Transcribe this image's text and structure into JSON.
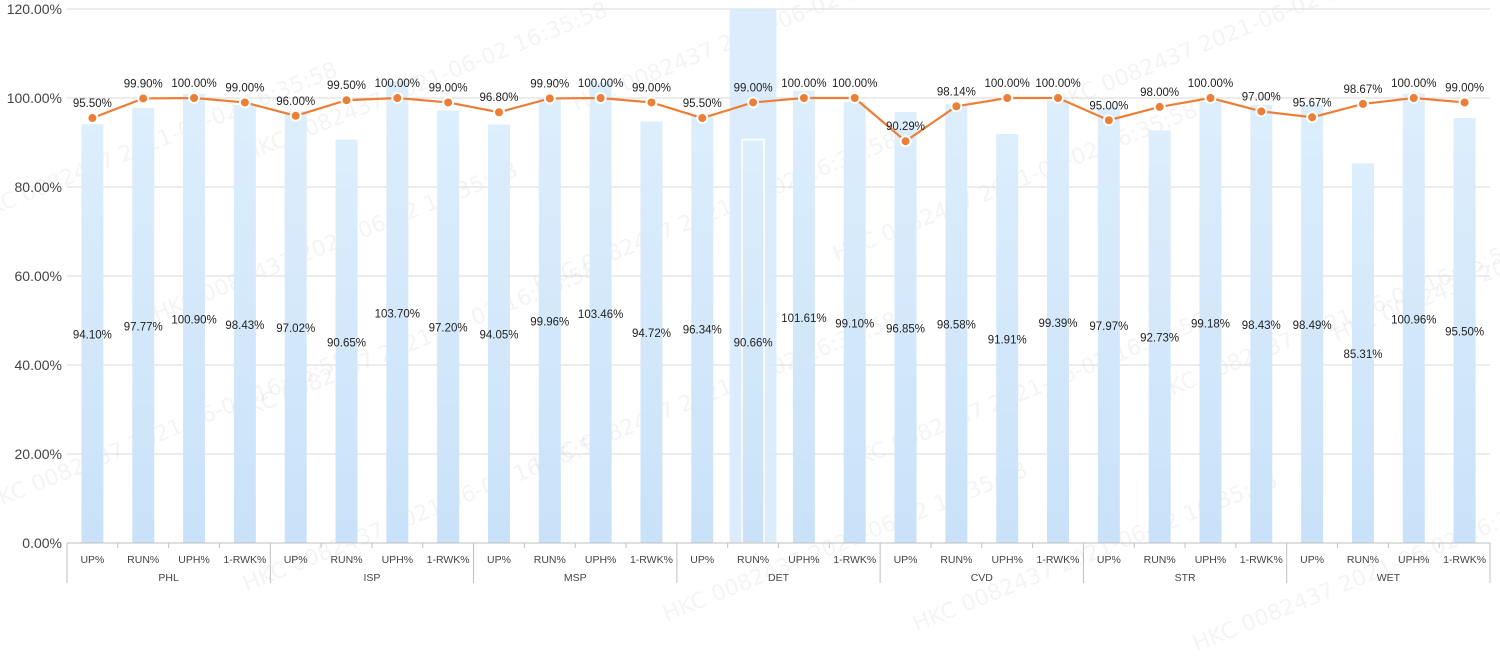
{
  "watermark": "HKC 0082437 2021-06-02 16:35:58",
  "colors": {
    "bar_top": "#ddeefc",
    "bar_bottom": "#c9e2f9",
    "highlight": "#d6e9fb",
    "line": "#ec7f37",
    "grid": "#d9d9d9",
    "axis_text": "#444444",
    "label_text": "#222222"
  },
  "chart_data": {
    "type": "bar",
    "combo_line": true,
    "ylim": [
      0,
      120
    ],
    "yticks": [
      "0.00%",
      "20.00%",
      "40.00%",
      "60.00%",
      "80.00%",
      "100.00%",
      "120.00%"
    ],
    "ytick_values": [
      0,
      20,
      40,
      60,
      80,
      100,
      120
    ],
    "grid": true,
    "metrics": [
      "UP%",
      "RUN%",
      "UPH%",
      "1-RWK%"
    ],
    "groups": [
      "PHL",
      "ISP",
      "MSP",
      "DET",
      "CVD",
      "STR",
      "WET"
    ],
    "highlighted_category": "DET RUN%",
    "bar_values": [
      94.1,
      97.77,
      100.9,
      98.43,
      97.02,
      90.65,
      103.7,
      97.2,
      94.05,
      99.96,
      103.46,
      94.72,
      96.34,
      90.66,
      101.61,
      99.1,
      96.85,
      98.58,
      91.91,
      99.39,
      97.97,
      92.73,
      99.18,
      98.43,
      98.49,
      85.31,
      100.96,
      95.5
    ],
    "bar_labels": [
      "94.10%",
      "97.77%",
      "100.90%",
      "98.43%",
      "97.02%",
      "90.65%",
      "103.70%",
      "97.20%",
      "94.05%",
      "99.96%",
      "103.46%",
      "94.72%",
      "96.34%",
      "90.66%",
      "101.61%",
      "99.10%",
      "96.85%",
      "98.58%",
      "91.91%",
      "99.39%",
      "97.97%",
      "92.73%",
      "99.18%",
      "98.43%",
      "98.49%",
      "85.31%",
      "100.96%",
      "95.50%"
    ],
    "line_values": [
      95.5,
      99.9,
      100.0,
      99.0,
      96.0,
      99.5,
      100.0,
      99.0,
      96.8,
      99.9,
      100.0,
      99.0,
      95.5,
      99.0,
      100.0,
      100.0,
      90.29,
      98.14,
      100.0,
      100.0,
      95.0,
      98.0,
      100.0,
      97.0,
      95.67,
      98.67,
      100.0,
      99.0
    ],
    "line_labels": [
      "95.50%",
      "99.90%",
      "100.00%",
      "99.00%",
      "96.00%",
      "99.50%",
      "100.00%",
      "99.00%",
      "96.80%",
      "99.90%",
      "100.00%",
      "99.00%",
      "95.50%",
      "99.00%",
      "100.00%",
      "100.00%",
      "90.29%",
      "98.14%",
      "100.00%",
      "100.00%",
      "95.00%",
      "98.00%",
      "100.00%",
      "97.00%",
      "95.67%",
      "98.67%",
      "100.00%",
      "99.00%"
    ]
  }
}
